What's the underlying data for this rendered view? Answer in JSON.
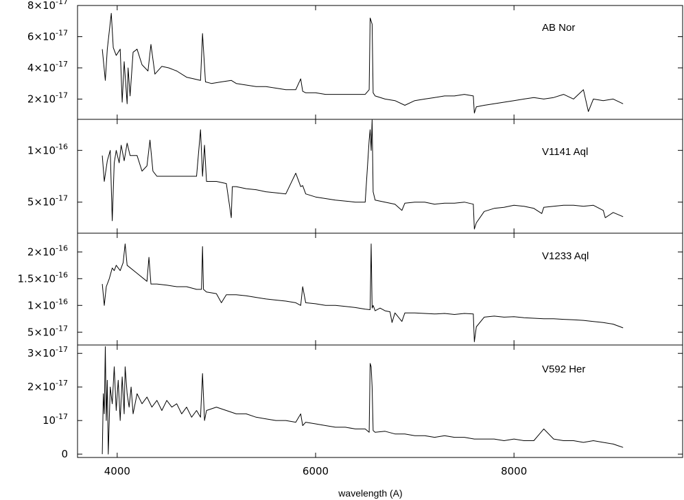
{
  "chart_data": {
    "type": "line",
    "xlabel": "wavelength (A)",
    "xlim": [
      3600,
      9700
    ],
    "x_ticks": [
      4000,
      6000,
      8000
    ],
    "x_tick_labels": [
      "4000",
      "6000",
      "8000"
    ],
    "panels": [
      {
        "name": "AB Nor",
        "ylim": [
          7e-18,
          8e-17
        ],
        "y_ticks": [
          2e-17,
          4e-17,
          6e-17,
          8e-17
        ],
        "y_tick_mantissa": [
          "2",
          "4",
          "6",
          "8"
        ],
        "y_tick_exponent": [
          "-17",
          "-17",
          "-17",
          "-17"
        ],
        "x": [
          3850,
          3880,
          3900,
          3940,
          3960,
          3990,
          4030,
          4050,
          4070,
          4100,
          4110,
          4130,
          4160,
          4200,
          4250,
          4310,
          4340,
          4380,
          4450,
          4520,
          4600,
          4700,
          4770,
          4840,
          4860,
          4890,
          4950,
          5050,
          5150,
          5200,
          5300,
          5400,
          5500,
          5600,
          5700,
          5800,
          5850,
          5870,
          5900,
          6000,
          6100,
          6200,
          6300,
          6400,
          6500,
          6540,
          6550,
          6560,
          6570,
          6580,
          6600,
          6700,
          6800,
          6900,
          7000,
          7100,
          7200,
          7300,
          7400,
          7500,
          7590,
          7600,
          7620,
          7700,
          7800,
          7900,
          8000,
          8100,
          8200,
          8300,
          8400,
          8500,
          8600,
          8700,
          8750,
          8800,
          8900,
          9000,
          9100
        ],
        "y": [
          5.2e-17,
          3.2e-17,
          5.2e-17,
          7.5e-17,
          5.3e-17,
          4.8e-17,
          5.2e-17,
          1.8e-17,
          4.4e-17,
          1.7e-17,
          4e-17,
          2.2e-17,
          5e-17,
          5.2e-17,
          4.2e-17,
          3.8e-17,
          5.5e-17,
          3.6e-17,
          4.1e-17,
          4e-17,
          3.8e-17,
          3.4e-17,
          3.3e-17,
          3.2e-17,
          6.2e-17,
          3.1e-17,
          3e-17,
          3.1e-17,
          3.2e-17,
          3e-17,
          2.9e-17,
          2.8e-17,
          2.8e-17,
          2.7e-17,
          2.6e-17,
          2.6e-17,
          3.3e-17,
          2.5e-17,
          2.4e-17,
          2.4e-17,
          2.3e-17,
          2.3e-17,
          2.3e-17,
          2.3e-17,
          2.3e-17,
          2.6e-17,
          7.2e-17,
          7e-17,
          6.8e-17,
          2.4e-17,
          2.2e-17,
          2e-17,
          1.9e-17,
          1.6e-17,
          1.9e-17,
          2e-17,
          2.1e-17,
          2.2e-17,
          2.2e-17,
          2.3e-17,
          2.2e-17,
          1.1e-17,
          1.5e-17,
          1.6e-17,
          1.7e-17,
          1.8e-17,
          1.9e-17,
          2e-17,
          2.1e-17,
          2e-17,
          2.1e-17,
          2.3e-17,
          2e-17,
          2.6e-17,
          1.2e-17,
          2e-17,
          1.9e-17,
          2e-17,
          1.7e-17
        ]
      },
      {
        "name": "V1141 Aql",
        "ylim": [
          2e-17,
          1.3e-16
        ],
        "y_ticks": [
          5e-17,
          1e-16
        ],
        "y_tick_mantissa": [
          "5",
          "1"
        ],
        "y_tick_exponent": [
          "-17",
          "-16"
        ],
        "x": [
          3850,
          3870,
          3900,
          3930,
          3950,
          3970,
          3990,
          4020,
          4040,
          4070,
          4100,
          4130,
          4200,
          4250,
          4300,
          4330,
          4360,
          4400,
          4500,
          4600,
          4700,
          4800,
          4840,
          4860,
          4880,
          4900,
          5000,
          5100,
          5150,
          5160,
          5200,
          5300,
          5400,
          5500,
          5600,
          5700,
          5800,
          5850,
          5870,
          5900,
          6000,
          6200,
          6400,
          6500,
          6540,
          6550,
          6560,
          6570,
          6580,
          6600,
          6700,
          6800,
          6870,
          6900,
          7000,
          7100,
          7200,
          7300,
          7400,
          7500,
          7590,
          7600,
          7620,
          7700,
          7800,
          7900,
          8000,
          8100,
          8200,
          8280,
          8300,
          8400,
          8500,
          8600,
          8700,
          8800,
          8900,
          8920,
          9000,
          9100
        ],
        "y": [
          9.5e-17,
          7e-17,
          9e-17,
          1e-16,
          3.2e-17,
          8.8e-17,
          1e-16,
          8.8e-17,
          1.05e-16,
          9e-17,
          1.07e-16,
          9.5e-17,
          9.5e-17,
          8e-17,
          8.5e-17,
          1.1e-16,
          8e-17,
          7.5e-17,
          7.5e-17,
          7.5e-17,
          7.5e-17,
          7.5e-17,
          1.2e-16,
          7.5e-17,
          1.05e-16,
          7e-17,
          7e-17,
          6.8e-17,
          3.5e-17,
          6.5e-17,
          6.5e-17,
          6.3e-17,
          6.2e-17,
          6e-17,
          5.9e-17,
          5.8e-17,
          7.8e-17,
          6.5e-17,
          6.6e-17,
          5.8e-17,
          5.5e-17,
          5.2e-17,
          5e-17,
          5e-17,
          1.1e-16,
          1.2e-16,
          1e-16,
          1.3e-16,
          6e-17,
          5.2e-17,
          5e-17,
          4.8e-17,
          4.2e-17,
          4.9e-17,
          5e-17,
          5e-17,
          4.8e-17,
          4.9e-17,
          4.9e-17,
          5e-17,
          4.8e-17,
          2.4e-17,
          3e-17,
          4.1e-17,
          4.4e-17,
          4.5e-17,
          4.7e-17,
          4.6e-17,
          4.4e-17,
          3.9e-17,
          4.5e-17,
          4.6e-17,
          4.7e-17,
          4.7e-17,
          4.6e-17,
          4.7e-17,
          4.2e-17,
          3.5e-17,
          4e-17,
          3.6e-17
        ]
      },
      {
        "name": "V1233 Aql",
        "ylim": [
          2.6e-17,
          2.35e-16
        ],
        "y_ticks": [
          5e-17,
          1e-16,
          1.5e-16,
          2e-16
        ],
        "y_tick_mantissa": [
          "5",
          "1",
          "1.5",
          "2"
        ],
        "y_tick_exponent": [
          "-17",
          "-16",
          "-16",
          "-16"
        ],
        "x": [
          3850,
          3870,
          3890,
          3920,
          3950,
          3970,
          3990,
          4030,
          4060,
          4080,
          4100,
          4200,
          4300,
          4320,
          4340,
          4400,
          4500,
          4600,
          4700,
          4800,
          4850,
          4860,
          4870,
          4900,
          5000,
          5050,
          5100,
          5200,
          5300,
          5400,
          5500,
          5600,
          5700,
          5800,
          5850,
          5870,
          5900,
          6000,
          6100,
          6200,
          6300,
          6400,
          6500,
          6550,
          6560,
          6570,
          6580,
          6600,
          6650,
          6700,
          6750,
          6770,
          6800,
          6870,
          6900,
          7000,
          7100,
          7200,
          7300,
          7400,
          7500,
          7590,
          7600,
          7620,
          7700,
          7800,
          7900,
          8000,
          8100,
          8200,
          8300,
          8400,
          8500,
          8600,
          8700,
          8800,
          8900,
          9000,
          9100
        ],
        "y": [
          1.4e-16,
          1e-16,
          1.35e-16,
          1.5e-16,
          1.7e-16,
          1.65e-16,
          1.75e-16,
          1.65e-16,
          1.8e-16,
          2.15e-16,
          1.75e-16,
          1.6e-16,
          1.45e-16,
          1.9e-16,
          1.4e-16,
          1.4e-16,
          1.38e-16,
          1.35e-16,
          1.35e-16,
          1.3e-16,
          1.3e-16,
          2.1e-16,
          1.3e-16,
          1.25e-16,
          1.22e-16,
          1.05e-16,
          1.2e-16,
          1.2e-16,
          1.18e-16,
          1.15e-16,
          1.12e-16,
          1.1e-16,
          1.08e-16,
          1.05e-16,
          1e-16,
          1.35e-16,
          1.05e-16,
          1.03e-16,
          1e-16,
          1e-16,
          9.8e-17,
          9.6e-17,
          9.3e-17,
          9.2e-17,
          2.15e-16,
          9.5e-17,
          1e-16,
          9e-17,
          9.5e-17,
          9e-17,
          8.8e-17,
          6.8e-17,
          8.6e-17,
          7e-17,
          8.6e-17,
          8.6e-17,
          8.5e-17,
          8.4e-17,
          8.5e-17,
          8.3e-17,
          8.5e-17,
          8.4e-17,
          3.2e-17,
          6e-17,
          7.8e-17,
          8e-17,
          7.8e-17,
          7.9e-17,
          7.7e-17,
          7.6e-17,
          7.5e-17,
          7.5e-17,
          7.4e-17,
          7.3e-17,
          7.2e-17,
          7e-17,
          6.8e-17,
          6.5e-17,
          5.8e-17
        ]
      },
      {
        "name": "V592 Her",
        "ylim": [
          -1e-18,
          3.25e-17
        ],
        "y_ticks": [
          0,
          1e-17,
          2e-17,
          3e-17
        ],
        "y_tick_mantissa": [
          "0",
          "",
          "2",
          "3"
        ],
        "y_tick_exponent": [
          "",
          "-17",
          "-17",
          "-17"
        ],
        "x": [
          3850,
          3860,
          3870,
          3880,
          3890,
          3900,
          3910,
          3930,
          3950,
          3970,
          3990,
          4010,
          4030,
          4050,
          4070,
          4080,
          4100,
          4120,
          4140,
          4160,
          4200,
          4250,
          4300,
          4350,
          4400,
          4450,
          4500,
          4550,
          4600,
          4650,
          4700,
          4750,
          4800,
          4840,
          4860,
          4880,
          4900,
          5000,
          5100,
          5200,
          5300,
          5400,
          5500,
          5600,
          5700,
          5800,
          5850,
          5870,
          5900,
          6000,
          6100,
          6200,
          6300,
          6400,
          6500,
          6540,
          6550,
          6560,
          6570,
          6580,
          6600,
          6700,
          6800,
          6900,
          7000,
          7100,
          7200,
          7300,
          7400,
          7500,
          7600,
          7700,
          7800,
          7900,
          8000,
          8100,
          8200,
          8300,
          8400,
          8500,
          8600,
          8700,
          8800,
          8900,
          9000,
          9050,
          9100
        ],
        "y": [
          0,
          1.8e-17,
          1.2e-17,
          3.2e-17,
          1e-17,
          2.2e-17,
          0,
          2e-17,
          1.5e-17,
          2.6e-17,
          1.3e-17,
          2.2e-17,
          1e-17,
          2.3e-17,
          1.2e-17,
          2.6e-17,
          1.8e-17,
          1.4e-17,
          2e-17,
          1.2e-17,
          1.8e-17,
          1.5e-17,
          1.7e-17,
          1.4e-17,
          1.6e-17,
          1.3e-17,
          1.6e-17,
          1.4e-17,
          1.5e-17,
          1.2e-17,
          1.4e-17,
          1.1e-17,
          1.3e-17,
          1.1e-17,
          2.4e-17,
          1e-17,
          1.3e-17,
          1.4e-17,
          1.3e-17,
          1.2e-17,
          1.2e-17,
          1.1e-17,
          1.05e-17,
          1e-17,
          1e-17,
          9.5e-18,
          1.2e-17,
          8.5e-18,
          9.5e-18,
          9e-18,
          8.5e-18,
          8e-18,
          8e-18,
          7.5e-18,
          7.5e-18,
          6.5e-18,
          2.7e-17,
          2.6e-17,
          2e-17,
          7e-18,
          6.5e-18,
          6.8e-18,
          6e-18,
          6e-18,
          5.5e-18,
          5.5e-18,
          5e-18,
          5.5e-18,
          5e-18,
          5e-18,
          4.5e-18,
          4.5e-18,
          4.5e-18,
          4e-18,
          4.5e-18,
          4e-18,
          4e-18,
          7.5e-18,
          4.5e-18,
          4e-18,
          4e-18,
          3.5e-18,
          4e-18,
          3.5e-18,
          3e-18,
          2.5e-18,
          2e-18
        ]
      }
    ]
  }
}
